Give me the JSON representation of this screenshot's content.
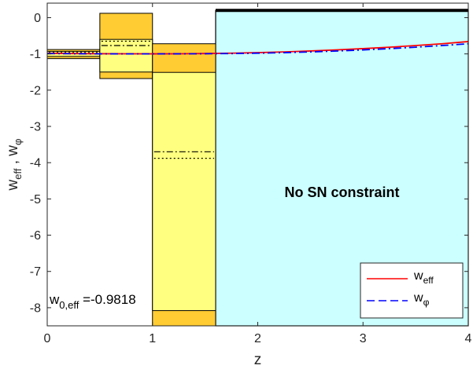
{
  "chart_data": {
    "type": "line",
    "xlabel": "z",
    "ylabel": "w_eff , w_φ",
    "ylabel_parts": {
      "w1": "w",
      "sub1": "eff",
      "sep": " , ",
      "w2": "w",
      "sub2": "φ"
    },
    "xlim": [
      0,
      4
    ],
    "ylim": [
      -8.5,
      0.4
    ],
    "xticks": [
      0,
      1,
      2,
      3,
      4
    ],
    "yticks": [
      0,
      -1,
      -2,
      -3,
      -4,
      -5,
      -6,
      -7,
      -8
    ],
    "xtick_labels": [
      "0",
      "1",
      "2",
      "3",
      "4"
    ],
    "ytick_labels": [
      "0",
      "-1",
      "-2",
      "-3",
      "-4",
      "-5",
      "-6",
      "-7",
      "-8"
    ],
    "grid": false,
    "legend_position": "bottom-right",
    "colors": {
      "outer_band": "#ffcc33",
      "inner_band": "#ffff80",
      "no_sn_region": "#ccffff",
      "w_eff": "#ff0000",
      "w_phi": "#0000ff"
    },
    "bins": [
      {
        "z_range": [
          0,
          0.5
        ],
        "outer": [
          -1.13,
          -0.88
        ],
        "inner": [
          -1.07,
          -0.93
        ],
        "central": -0.99,
        "central2": -0.96
      },
      {
        "z_range": [
          0.5,
          1.0
        ],
        "outer": [
          -1.68,
          0.12
        ],
        "inner": [
          -1.5,
          -0.6
        ],
        "central": -0.77,
        "central2": -0.65
      },
      {
        "z_range": [
          1.0,
          1.6
        ],
        "outer": [
          -8.5,
          -0.72
        ],
        "inner": [
          -8.08,
          -1.51
        ],
        "central": -3.7,
        "central2": -3.88
      }
    ],
    "no_sn_region": {
      "z_range": [
        1.6,
        4.0
      ],
      "y_range": [
        -8.5,
        0.2
      ]
    },
    "series": [
      {
        "name": "w_eff",
        "label_main": "w",
        "label_sub": "eff",
        "style": "solid",
        "x": [
          0,
          0.25,
          0.5,
          0.75,
          1.0,
          1.25,
          1.5,
          1.75,
          2.0,
          2.25,
          2.5,
          2.75,
          3.0,
          3.25,
          3.5,
          3.75,
          4.0
        ],
        "y": [
          -0.982,
          -0.99,
          -0.995,
          -0.997,
          -0.998,
          -0.996,
          -0.99,
          -0.98,
          -0.965,
          -0.945,
          -0.92,
          -0.89,
          -0.855,
          -0.815,
          -0.77,
          -0.72,
          -0.66
        ]
      },
      {
        "name": "w_φ",
        "label_main": "w",
        "label_sub": "φ",
        "style": "dash-dot",
        "x": [
          0,
          0.25,
          0.5,
          0.75,
          1.0,
          1.25,
          1.5,
          1.75,
          2.0,
          2.25,
          2.5,
          2.75,
          3.0,
          3.25,
          3.5,
          3.75,
          4.0
        ],
        "y": [
          -0.99,
          -0.995,
          -0.998,
          -0.999,
          -0.999,
          -0.998,
          -0.995,
          -0.99,
          -0.98,
          -0.965,
          -0.945,
          -0.92,
          -0.89,
          -0.855,
          -0.815,
          -0.77,
          -0.72
        ]
      }
    ],
    "annotations": {
      "w0_main": "w",
      "w0_sub": "0,eff",
      "w0_value": " =-0.9818",
      "no_sn": "No SN constraint"
    }
  }
}
